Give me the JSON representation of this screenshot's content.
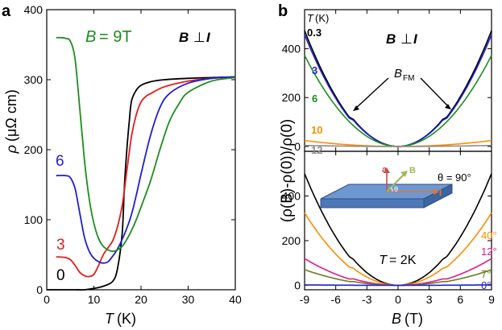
{
  "chart_data": [
    {
      "panel_label": "a",
      "type": "line",
      "xlabel_symbol": "T",
      "xlabel_unit": "(K)",
      "ylabel_symbol": "ρ",
      "ylabel_unit": "(μΩ cm)",
      "xlim": [
        0,
        40
      ],
      "ylim": [
        0,
        400
      ],
      "xticks": [
        0,
        10,
        20,
        30,
        40
      ],
      "yticks": [
        0,
        100,
        200,
        300,
        400
      ],
      "field_label_sym": "B",
      "field_label_val": "= 9T",
      "geometry_a": "B",
      "geometry_op": "⊥",
      "geometry_b": "I",
      "series": [
        {
          "name": "0",
          "label": "0",
          "color": "#000000",
          "x": [
            0,
            2,
            4,
            6,
            8,
            10,
            12,
            14,
            15,
            16,
            16.5,
            17,
            17.5,
            18,
            19,
            20,
            22,
            25,
            30,
            35,
            40
          ],
          "y": [
            0,
            0,
            0,
            0,
            0,
            2,
            5,
            12,
            30,
            80,
            150,
            200,
            240,
            270,
            285,
            292,
            297,
            300,
            302,
            303,
            304
          ]
        },
        {
          "name": "3",
          "label": "3",
          "color": "#e41a1c",
          "x": [
            2,
            4,
            5,
            6,
            7,
            8,
            9,
            10,
            11,
            12,
            13,
            14,
            15,
            16,
            17,
            18,
            19,
            20,
            21,
            22,
            25,
            30,
            35,
            40
          ],
          "y": [
            47,
            46,
            43,
            35,
            25,
            20,
            19,
            22,
            35,
            50,
            60,
            70,
            90,
            120,
            170,
            220,
            250,
            268,
            276,
            280,
            290,
            298,
            302,
            304
          ]
        },
        {
          "name": "6",
          "label": "6",
          "color": "#1f1fd1",
          "x": [
            2,
            4,
            5,
            6,
            7,
            8,
            9,
            10,
            11,
            12,
            13,
            14,
            15,
            16,
            17,
            18,
            19,
            20,
            22,
            24,
            26,
            30,
            35,
            40
          ],
          "y": [
            163,
            163,
            160,
            145,
            110,
            75,
            55,
            45,
            40,
            38,
            40,
            48,
            58,
            72,
            88,
            108,
            135,
            165,
            220,
            260,
            280,
            295,
            302,
            304
          ]
        },
        {
          "name": "9T",
          "label": "9T",
          "color": "#1e8c1e",
          "x": [
            2,
            3,
            4,
            5,
            6,
            7,
            8,
            9,
            10,
            11,
            12,
            13,
            14,
            15,
            16,
            17,
            18,
            19,
            20,
            22,
            24,
            26,
            28,
            30,
            35,
            40
          ],
          "y": [
            360,
            360,
            359,
            355,
            330,
            260,
            185,
            130,
            95,
            73,
            62,
            57,
            55,
            57,
            62,
            72,
            85,
            100,
            118,
            155,
            200,
            240,
            265,
            282,
            298,
            303
          ]
        }
      ]
    },
    {
      "panel_label": "b",
      "type": "line",
      "subplot": "top",
      "ylim": [
        -20,
        560
      ],
      "xlim": [
        -9,
        9
      ],
      "yticks": [
        0,
        200,
        400
      ],
      "legend_title": "T (K)",
      "geometry_a": "B",
      "geometry_op": "⊥",
      "geometry_b": "I",
      "annotation_sym": "B",
      "annotation_sub": "FM",
      "series": [
        {
          "name": "0.3",
          "label": "0.3",
          "color": "#000000",
          "a": 6.0,
          "kink": 12
        },
        {
          "name": "3",
          "label": "3",
          "color": "#1f1fd1",
          "a": 5.8,
          "kink": 12
        },
        {
          "name": "6",
          "label": "6",
          "color": "#1e8c1e",
          "a": 4.6,
          "kink": 0
        },
        {
          "name": "10",
          "label": "10",
          "color": "#ff8c00",
          "a": 0.3,
          "kink": 0
        },
        {
          "name": "12",
          "label": "12",
          "color": "#8c8c8c",
          "a": 0.05,
          "kink": 0
        }
      ]
    },
    {
      "panel_label": "b",
      "type": "line",
      "subplot": "bottom",
      "xlabel_symbol": "B",
      "xlabel_unit": "(T)",
      "ylabel_text": "(ρ(B)-ρ(0))/ρ(0)",
      "xlim": [
        -9,
        9
      ],
      "ylim": [
        -20,
        600
      ],
      "xticks": [
        -9,
        -6,
        -3,
        0,
        3,
        6,
        9
      ],
      "xtick_labels": [
        "-9",
        "-6",
        "-3",
        "0",
        "3",
        "6",
        "9"
      ],
      "yticks": [
        0,
        200,
        400
      ],
      "temperature_sym": "T",
      "temperature_val": "= 2K",
      "inset_axis_a": "a",
      "inset_axis_b": "B",
      "inset_axis_c": "I",
      "inset_angle": "θ",
      "series": [
        {
          "name": "90°",
          "label": "θ = 90°",
          "color": "#000000",
          "a": 6.3,
          "kink": 10
        },
        {
          "name": "40°",
          "label": "40°",
          "color": "#ff8c00",
          "a": 4.1,
          "kink": 8
        },
        {
          "name": "12°",
          "label": "12°",
          "color": "#e0198c",
          "a": 1.55,
          "kink": 6
        },
        {
          "name": "7°",
          "label": "7°",
          "color": "#6b7d1e",
          "a": 0.9,
          "kink": 3
        },
        {
          "name": "0°",
          "label": "0°",
          "color": "#1f1fd1",
          "a": 0.02,
          "kink": 0
        }
      ]
    }
  ]
}
